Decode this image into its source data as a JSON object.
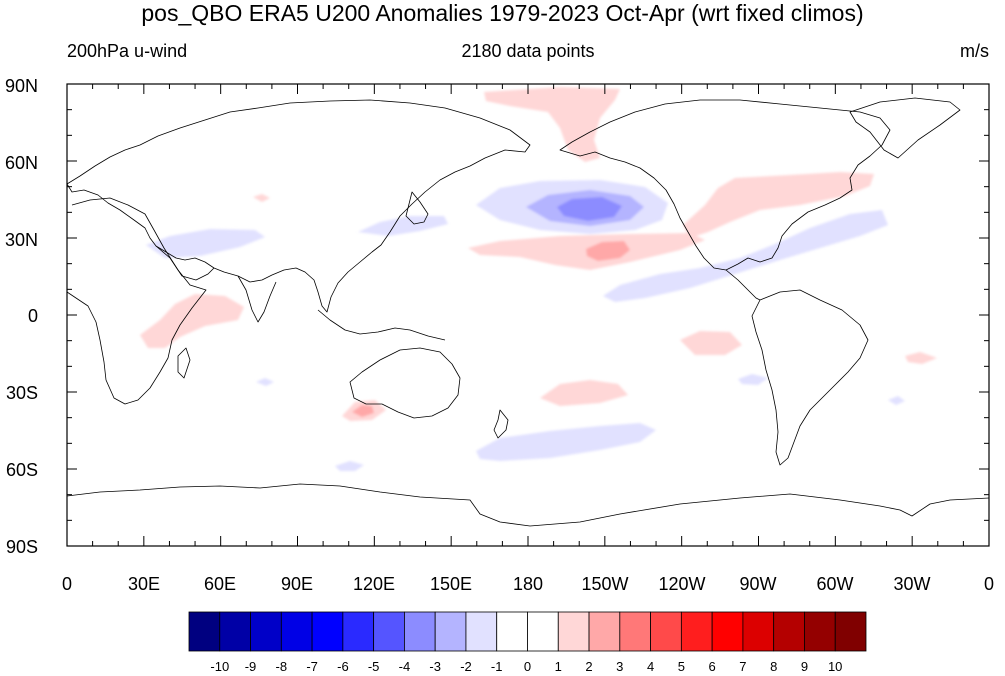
{
  "title": "pos_QBO ERA5 U200 Anomalies 1979-2023 Oct-Apr (wrt fixed climos)",
  "left_subtitle": "200hPa u-wind",
  "center_subtitle": "2180 data points",
  "units": "m/s",
  "lat_labels": [
    "90N",
    "60N",
    "30N",
    "0",
    "30S",
    "60S",
    "90S"
  ],
  "lon_labels": [
    "0",
    "30E",
    "60E",
    "90E",
    "120E",
    "150E",
    "180",
    "150W",
    "120W",
    "90W",
    "60W",
    "30W",
    "0"
  ],
  "colorbar": {
    "labels": [
      "-10",
      "-9",
      "-8",
      "-7",
      "-6",
      "-5",
      "-4",
      "-3",
      "-2",
      "-1",
      "0",
      "1",
      "2",
      "3",
      "4",
      "5",
      "6",
      "7",
      "8",
      "9",
      "10"
    ],
    "colors": [
      "#000080",
      "#0000a6",
      "#0000c8",
      "#0000e6",
      "#0000ff",
      "#2a2aff",
      "#5555ff",
      "#8c8cff",
      "#b4b4ff",
      "#e1e1ff",
      "#ffffff",
      "#ffffff",
      "#ffd7d7",
      "#ffa8a8",
      "#ff7878",
      "#ff4a4a",
      "#ff1e1e",
      "#ff0000",
      "#dc0000",
      "#b40000",
      "#940000",
      "#800000"
    ]
  },
  "anomaly_features": [
    {
      "name": "north-pacific-negative-core",
      "sign": "negative",
      "lon_deg": 210,
      "lat_deg": 42,
      "max_magnitude": 4
    },
    {
      "name": "subtropical-pacific-positive",
      "sign": "positive",
      "lon_deg": 207,
      "lat_deg": 25,
      "max_magnitude": 3
    },
    {
      "name": "bering-strait-positive",
      "sign": "positive",
      "lon_deg": 195,
      "lat_deg": 75,
      "max_magnitude": 2
    },
    {
      "name": "north-america-atlantic-positive",
      "sign": "positive",
      "lon_deg": 270,
      "lat_deg": 45,
      "max_magnitude": 2
    },
    {
      "name": "east-pacific-atlantic-negative",
      "sign": "negative",
      "lon_deg": 280,
      "lat_deg": 20,
      "max_magnitude": 2
    },
    {
      "name": "indian-ocean-positive",
      "sign": "positive",
      "lon_deg": 55,
      "lat_deg": 0,
      "max_magnitude": 2
    },
    {
      "name": "middle-east-negative",
      "sign": "negative",
      "lon_deg": 45,
      "lat_deg": 28,
      "max_magnitude": 2
    },
    {
      "name": "south-australia-positive",
      "sign": "positive",
      "lon_deg": 117,
      "lat_deg": -36,
      "max_magnitude": 3
    },
    {
      "name": "south-pacific-positive",
      "sign": "positive",
      "lon_deg": 200,
      "lat_deg": -30,
      "max_magnitude": 2
    },
    {
      "name": "southern-ocean-negative",
      "sign": "negative",
      "lon_deg": 187,
      "lat_deg": -48,
      "max_magnitude": 2
    }
  ]
}
